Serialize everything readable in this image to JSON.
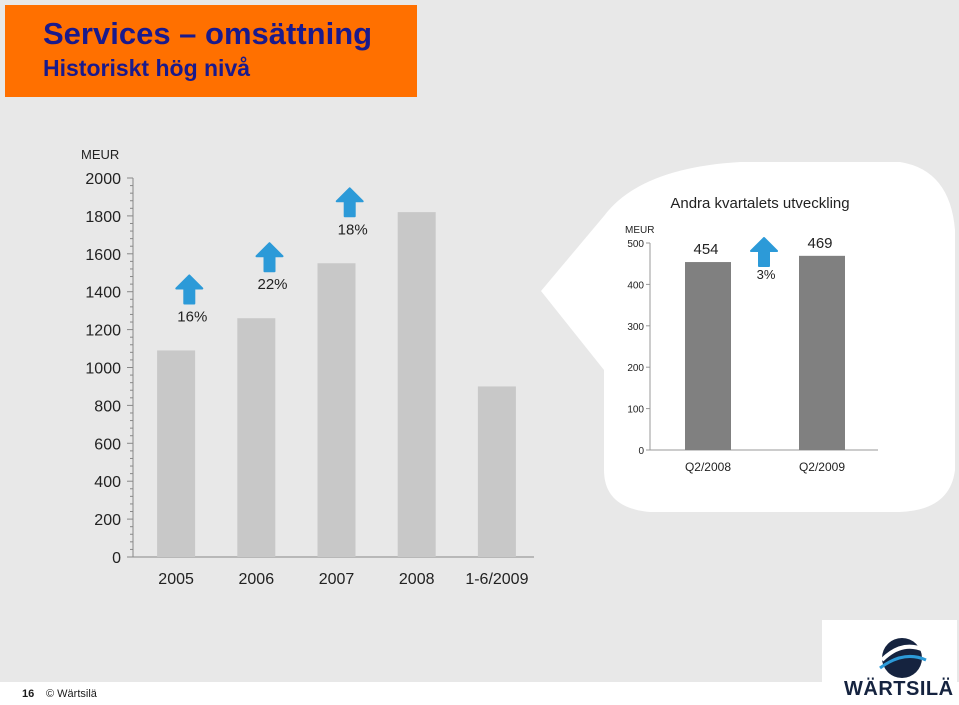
{
  "header": {
    "title": "Services – omsättning",
    "subtitle": "Historiskt hög nivå"
  },
  "footer": {
    "page_number": "16",
    "copyright": "© Wärtsilä"
  },
  "logo": {
    "text": "WÄRTSILÄ"
  },
  "colors": {
    "header_bg": "#ff7000",
    "title": "#1a1a8c",
    "bar_main": "#c8c8c8",
    "bar_inset": "#808080",
    "arrow": "#2c9ad8"
  },
  "chart_data": [
    {
      "type": "bar",
      "title": "",
      "ylabel": "MEUR",
      "ylim": [
        0,
        2000
      ],
      "yticks": [
        0,
        200,
        400,
        600,
        800,
        1000,
        1200,
        1400,
        1600,
        1800,
        2000
      ],
      "categories": [
        "2005",
        "2006",
        "2007",
        "2008",
        "1-6/2009"
      ],
      "values": [
        1090,
        1260,
        1550,
        1820,
        900
      ],
      "growth_annotations": [
        {
          "between": [
            "2005",
            "2006"
          ],
          "label": "16%",
          "icon": "up-arrow-icon"
        },
        {
          "between": [
            "2006",
            "2007"
          ],
          "label": "22%",
          "icon": "up-arrow-icon"
        },
        {
          "between": [
            "2007",
            "2008"
          ],
          "label": "18%",
          "icon": "up-arrow-icon"
        }
      ]
    },
    {
      "type": "bar",
      "title": "Andra kvartalets utveckling",
      "ylabel": "MEUR",
      "ylim": [
        0,
        500
      ],
      "yticks": [
        0,
        100,
        200,
        300,
        400,
        500
      ],
      "categories": [
        "Q2/2008",
        "Q2/2009"
      ],
      "values": [
        454,
        469
      ],
      "value_labels": [
        "454",
        "469"
      ],
      "growth_annotations": [
        {
          "between": [
            "Q2/2008",
            "Q2/2009"
          ],
          "label": "3%",
          "icon": "up-arrow-icon"
        }
      ]
    }
  ]
}
